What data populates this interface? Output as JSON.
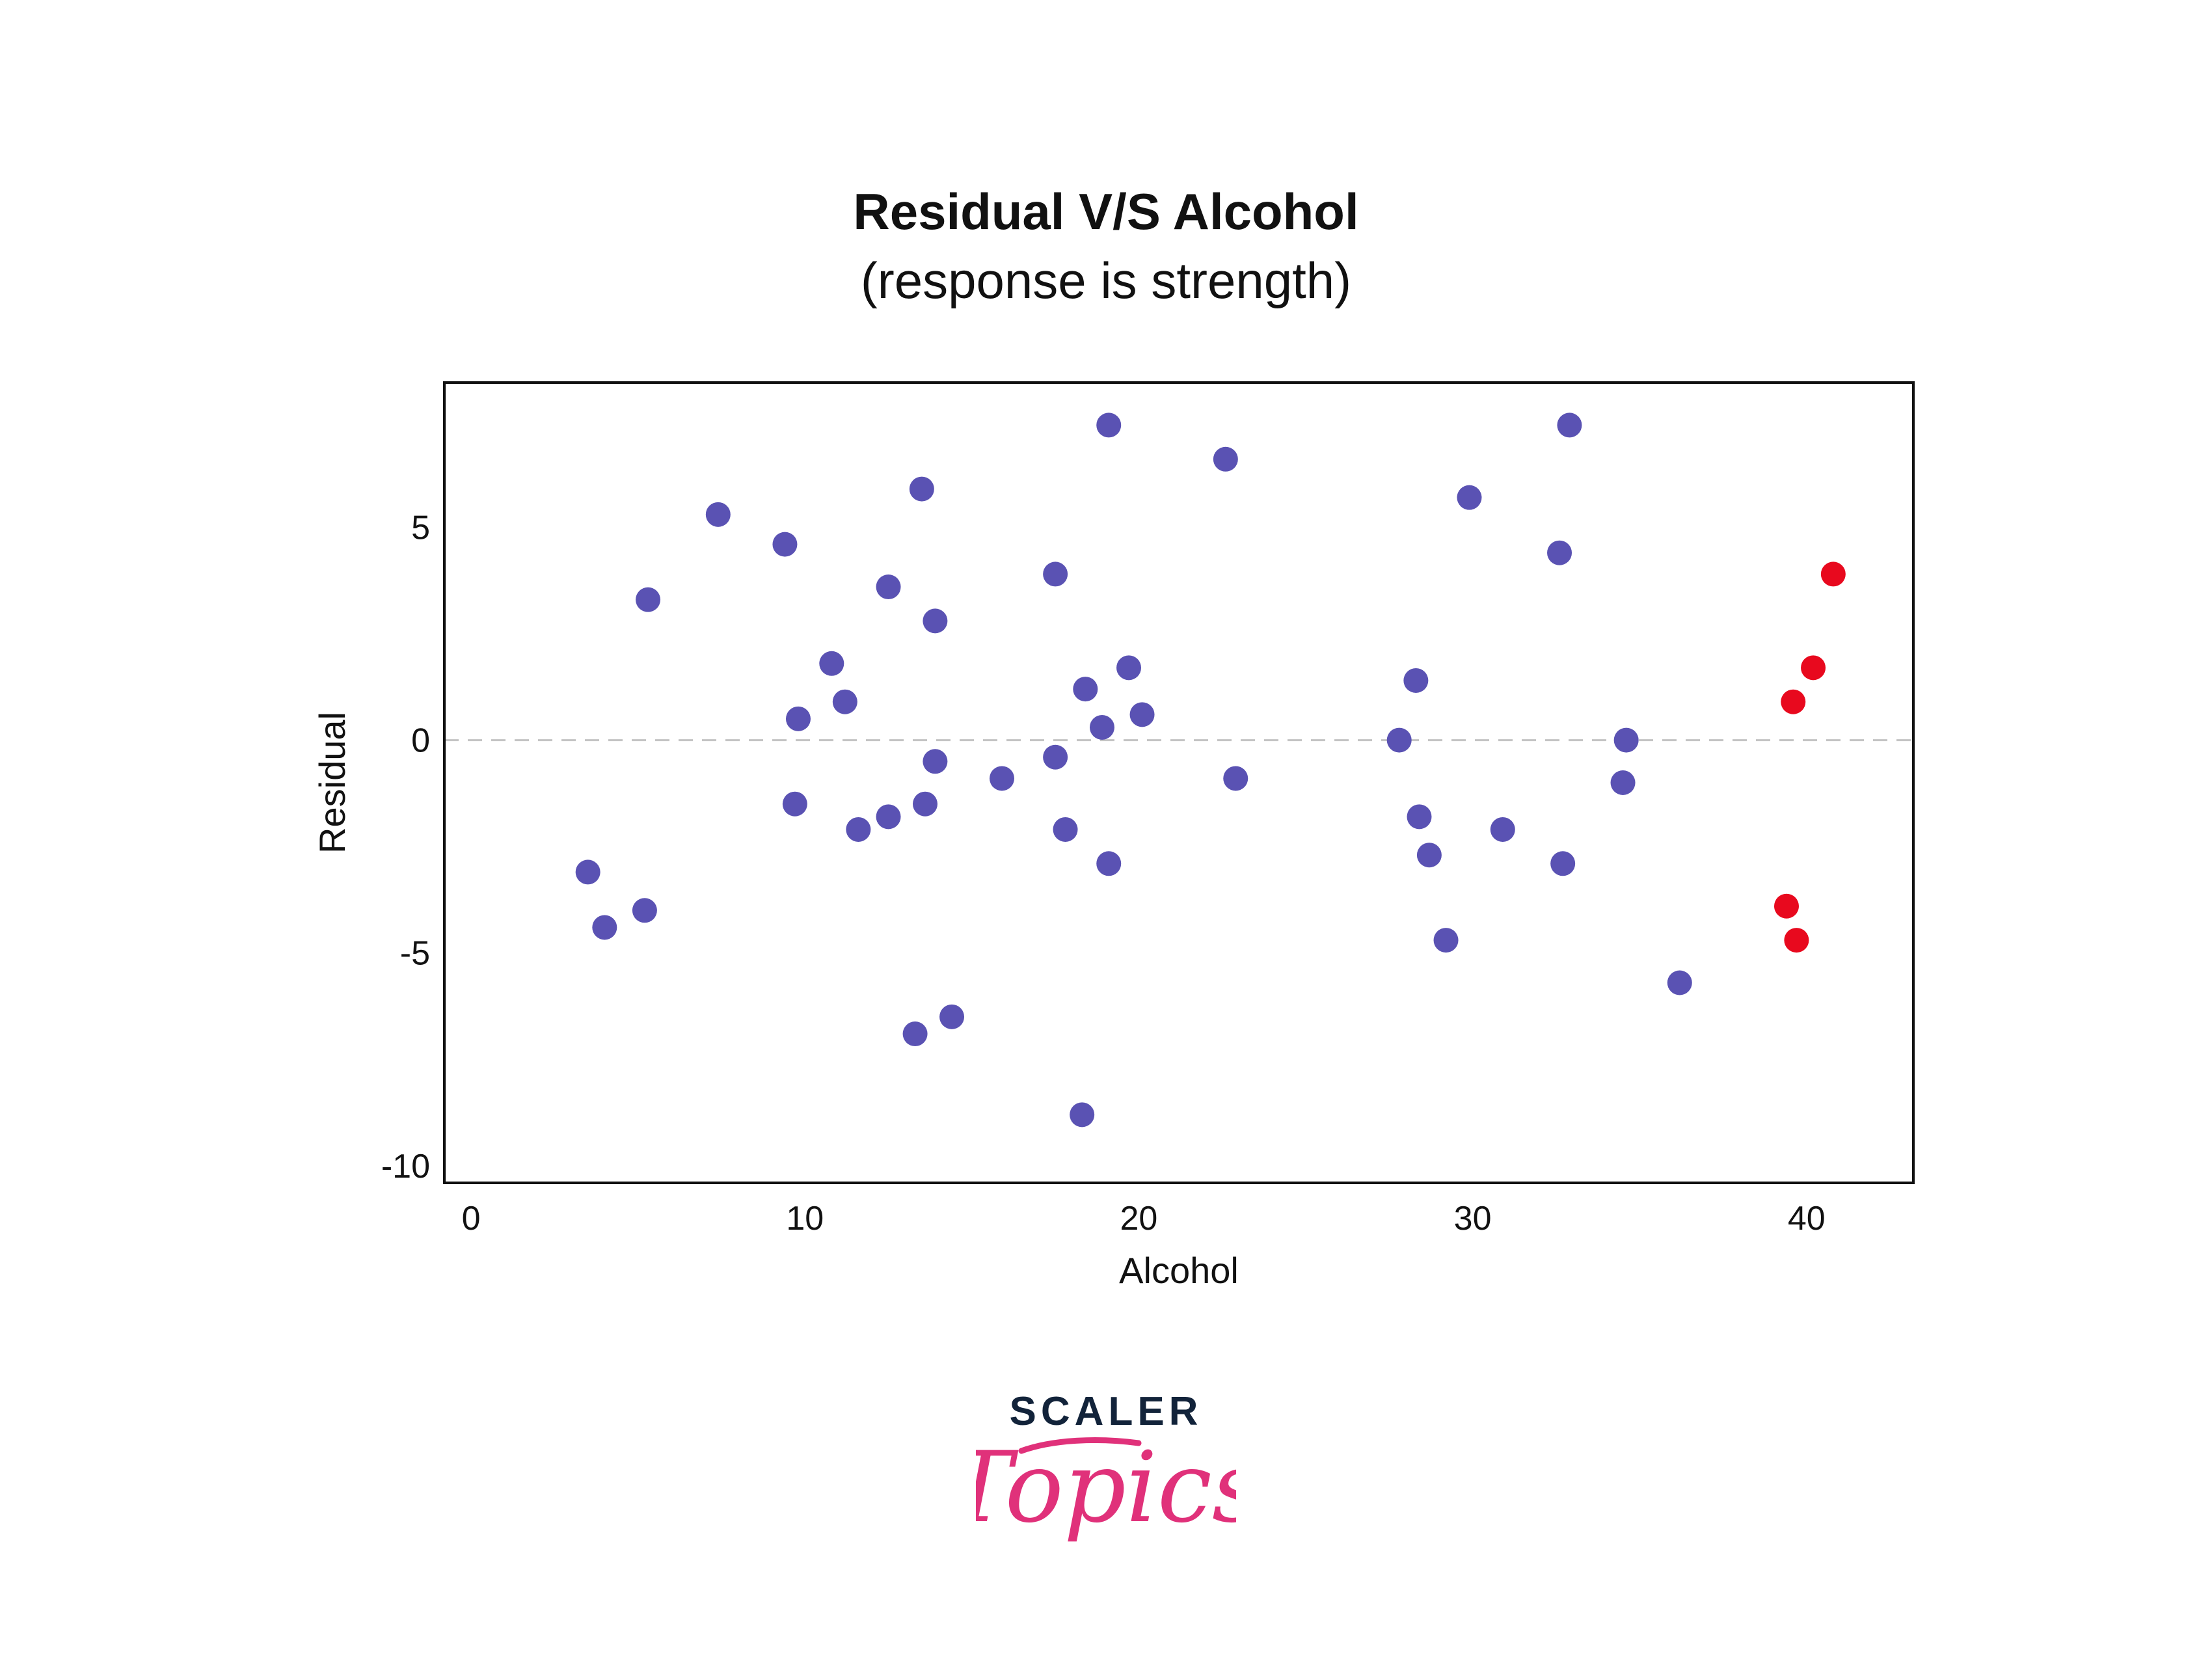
{
  "chart_data": {
    "type": "scatter",
    "title": "Residual V/S Alcohol",
    "subtitle": "(response is strength)",
    "xlabel": "Alcohol",
    "ylabel": "Residual",
    "xlim": [
      -0.8,
      43.2
    ],
    "ylim": [
      -10.4,
      8.4
    ],
    "x_ticks": [
      0,
      10,
      20,
      30,
      40
    ],
    "x_tick_labels": [
      "0",
      "10",
      "20",
      "30",
      "40"
    ],
    "y_ticks": [
      5,
      0,
      -5,
      -10
    ],
    "y_tick_labels": [
      "5",
      "0",
      "-5",
      "-10"
    ],
    "reference_line": {
      "y": 0,
      "style": "dashed",
      "color": "#c4c4c4"
    },
    "grid": false,
    "colors": {
      "normal": "#5a52b3",
      "highlight": "#e8091e"
    },
    "series": [
      {
        "group": "normal",
        "points": [
          [
            3.5,
            -3.1
          ],
          [
            4.0,
            -4.4
          ],
          [
            5.2,
            -4.0
          ],
          [
            5.3,
            3.3
          ],
          [
            7.4,
            5.3
          ],
          [
            9.4,
            4.6
          ],
          [
            9.7,
            -1.5
          ],
          [
            9.8,
            0.5
          ],
          [
            10.8,
            1.8
          ],
          [
            11.2,
            0.9
          ],
          [
            11.6,
            -2.1
          ],
          [
            12.5,
            3.6
          ],
          [
            12.5,
            -1.8
          ],
          [
            13.3,
            -6.9
          ],
          [
            13.5,
            5.9
          ],
          [
            13.6,
            -1.5
          ],
          [
            13.9,
            -0.5
          ],
          [
            13.9,
            2.8
          ],
          [
            14.4,
            -6.5
          ],
          [
            15.9,
            -0.9
          ],
          [
            17.5,
            3.9
          ],
          [
            17.5,
            -0.4
          ],
          [
            17.8,
            -2.1
          ],
          [
            18.3,
            -8.8
          ],
          [
            18.4,
            1.2
          ],
          [
            18.9,
            0.3
          ],
          [
            19.1,
            -2.9
          ],
          [
            19.1,
            7.4
          ],
          [
            19.7,
            1.7
          ],
          [
            20.1,
            0.6
          ],
          [
            22.6,
            6.6
          ],
          [
            22.9,
            -0.9
          ],
          [
            27.8,
            0.0
          ],
          [
            28.3,
            1.4
          ],
          [
            28.4,
            -1.8
          ],
          [
            28.7,
            -2.7
          ],
          [
            29.2,
            -4.7
          ],
          [
            29.9,
            5.7
          ],
          [
            30.9,
            -2.1
          ],
          [
            32.6,
            4.4
          ],
          [
            32.7,
            -2.9
          ],
          [
            32.9,
            7.4
          ],
          [
            34.5,
            -1.0
          ],
          [
            34.6,
            0.0
          ],
          [
            36.2,
            -5.7
          ]
        ]
      },
      {
        "group": "highlight",
        "points": [
          [
            39.4,
            -3.9
          ],
          [
            39.6,
            0.9
          ],
          [
            39.7,
            -4.7
          ],
          [
            40.2,
            1.7
          ],
          [
            40.8,
            3.9
          ]
        ]
      }
    ]
  },
  "logo": {
    "word": "SCALER",
    "script": "Topics"
  }
}
